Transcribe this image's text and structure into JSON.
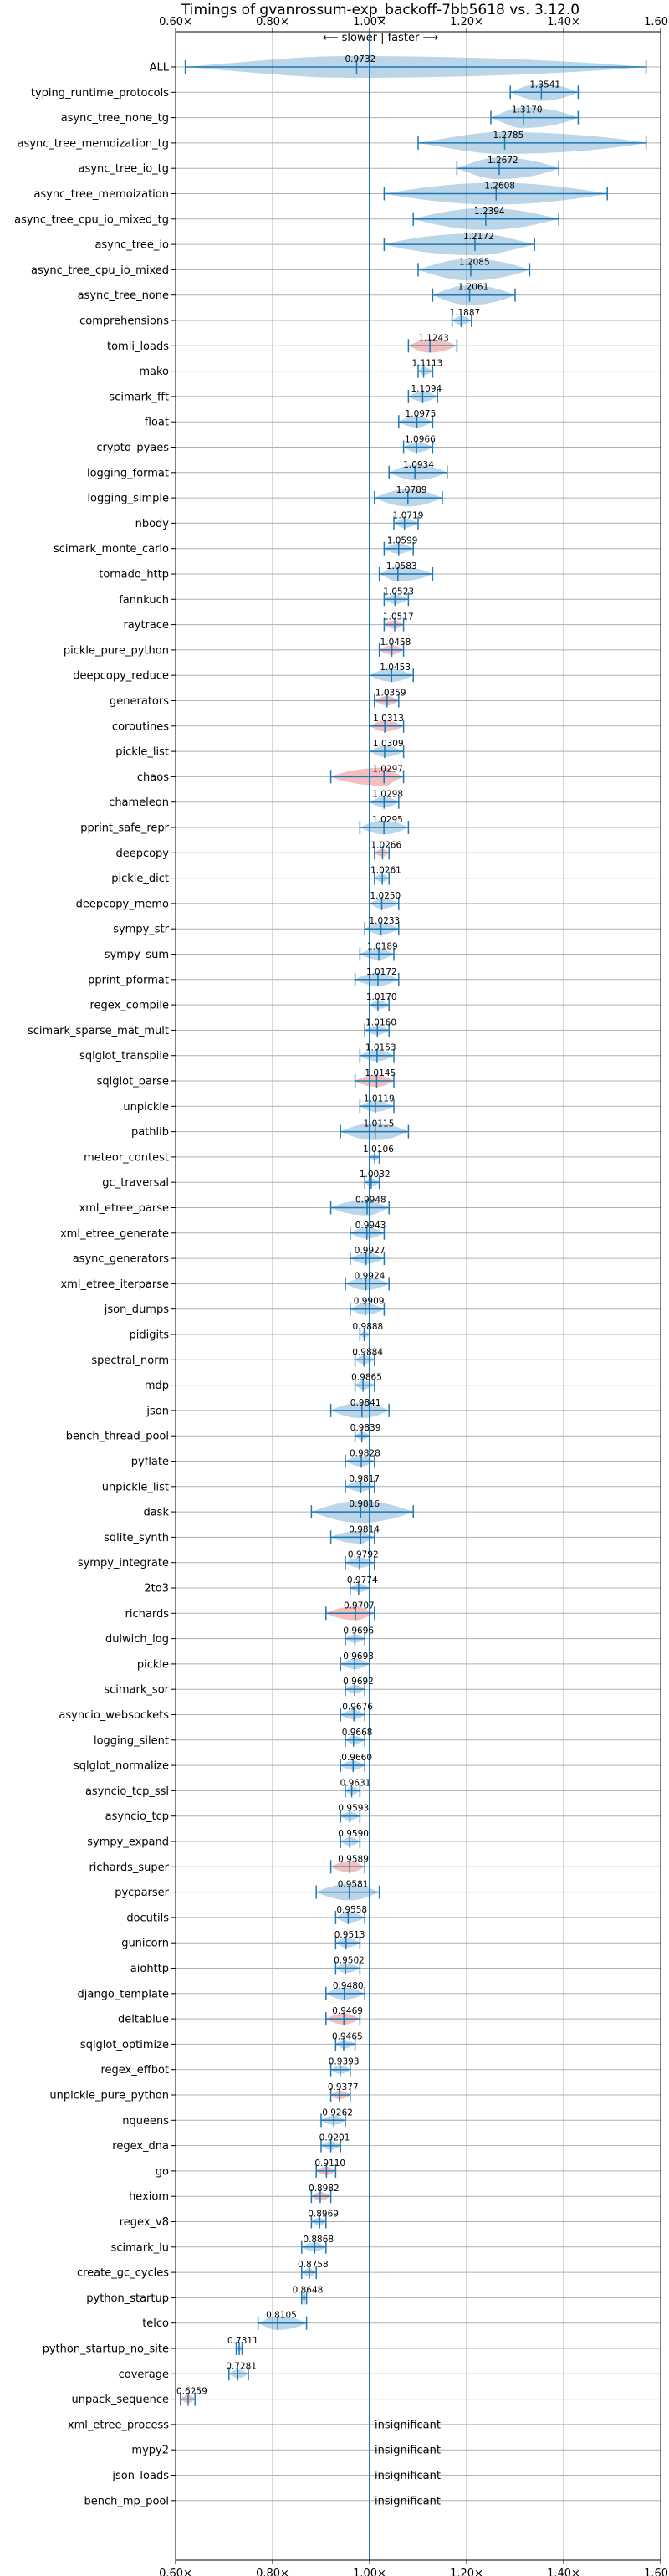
{
  "chart_data": {
    "type": "violin",
    "title": "Timings of gvanrossum-exp_backoff-7bb5618 vs. 3.12.0",
    "subtitle": "⟵ slower | faster ⟶",
    "xlim": [
      0.6,
      1.6
    ],
    "x_ticks": [
      "0.60×",
      "0.80×",
      "1.00×",
      "1.20×",
      "1.40×",
      "1.60×"
    ],
    "x_tick_values": [
      0.6,
      0.8,
      1.0,
      1.2,
      1.4,
      1.6
    ],
    "reference_line": 1.0,
    "grid": true,
    "colors": {
      "faster": "#1f77b4",
      "slower": "#d62728",
      "line": "#1f77b4"
    },
    "benchmarks": [
      {
        "name": "ALL",
        "value": 0.9732,
        "label": "0.9732",
        "lo": 0.62,
        "hi": 1.57
      },
      {
        "name": "typing_runtime_protocols",
        "value": 1.3541,
        "label": "1.3541",
        "lo": 1.29,
        "hi": 1.43
      },
      {
        "name": "async_tree_none_tg",
        "value": 1.317,
        "label": "1.3170",
        "lo": 1.25,
        "hi": 1.43
      },
      {
        "name": "async_tree_memoization_tg",
        "value": 1.2785,
        "label": "1.2785",
        "lo": 1.1,
        "hi": 1.57
      },
      {
        "name": "async_tree_io_tg",
        "value": 1.2672,
        "label": "1.2672",
        "lo": 1.18,
        "hi": 1.39
      },
      {
        "name": "async_tree_memoization",
        "value": 1.2608,
        "label": "1.2608",
        "lo": 1.03,
        "hi": 1.49
      },
      {
        "name": "async_tree_cpu_io_mixed_tg",
        "value": 1.2394,
        "label": "1.2394",
        "lo": 1.09,
        "hi": 1.39
      },
      {
        "name": "async_tree_io",
        "value": 1.2172,
        "label": "1.2172",
        "lo": 1.03,
        "hi": 1.34
      },
      {
        "name": "async_tree_cpu_io_mixed",
        "value": 1.2085,
        "label": "1.2085",
        "lo": 1.1,
        "hi": 1.33
      },
      {
        "name": "async_tree_none",
        "value": 1.2061,
        "label": "1.2061",
        "lo": 1.13,
        "hi": 1.3
      },
      {
        "name": "comprehensions",
        "value": 1.1887,
        "label": "1.1887",
        "lo": 1.17,
        "hi": 1.21
      },
      {
        "name": "tomli_loads",
        "value": 1.1243,
        "label": "1.1243",
        "lo": 1.08,
        "hi": 1.18
      },
      {
        "name": "mako",
        "value": 1.1113,
        "label": "1.1113",
        "lo": 1.1,
        "hi": 1.13
      },
      {
        "name": "scimark_fft",
        "value": 1.1094,
        "label": "1.1094",
        "lo": 1.08,
        "hi": 1.14
      },
      {
        "name": "float",
        "value": 1.0975,
        "label": "1.0975",
        "lo": 1.06,
        "hi": 1.13
      },
      {
        "name": "crypto_pyaes",
        "value": 1.0966,
        "label": "1.0966",
        "lo": 1.07,
        "hi": 1.13
      },
      {
        "name": "logging_format",
        "value": 1.0934,
        "label": "1.0934",
        "lo": 1.04,
        "hi": 1.16
      },
      {
        "name": "logging_simple",
        "value": 1.0789,
        "label": "1.0789",
        "lo": 1.01,
        "hi": 1.15
      },
      {
        "name": "nbody",
        "value": 1.0719,
        "label": "1.0719",
        "lo": 1.05,
        "hi": 1.1
      },
      {
        "name": "scimark_monte_carlo",
        "value": 1.0599,
        "label": "1.0599",
        "lo": 1.03,
        "hi": 1.09
      },
      {
        "name": "tornado_http",
        "value": 1.0583,
        "label": "1.0583",
        "lo": 1.02,
        "hi": 1.13
      },
      {
        "name": "fannkuch",
        "value": 1.0523,
        "label": "1.0523",
        "lo": 1.03,
        "hi": 1.08
      },
      {
        "name": "raytrace",
        "value": 1.0517,
        "label": "1.0517",
        "lo": 1.03,
        "hi": 1.07
      },
      {
        "name": "pickle_pure_python",
        "value": 1.0458,
        "label": "1.0458",
        "lo": 1.02,
        "hi": 1.07
      },
      {
        "name": "deepcopy_reduce",
        "value": 1.0453,
        "label": "1.0453",
        "lo": 1.0,
        "hi": 1.09
      },
      {
        "name": "generators",
        "value": 1.0359,
        "label": "1.0359",
        "lo": 1.01,
        "hi": 1.06
      },
      {
        "name": "coroutines",
        "value": 1.0313,
        "label": "1.0313",
        "lo": 1.0,
        "hi": 1.07
      },
      {
        "name": "pickle_list",
        "value": 1.0309,
        "label": "1.0309",
        "lo": 1.0,
        "hi": 1.07
      },
      {
        "name": "chaos",
        "value": 1.0297,
        "label": "1.0297",
        "lo": 0.92,
        "hi": 1.07
      },
      {
        "name": "chameleon",
        "value": 1.0298,
        "label": "1.0298",
        "lo": 1.0,
        "hi": 1.06
      },
      {
        "name": "pprint_safe_repr",
        "value": 1.0295,
        "label": "1.0295",
        "lo": 0.98,
        "hi": 1.08
      },
      {
        "name": "deepcopy",
        "value": 1.0266,
        "label": "1.0266",
        "lo": 1.01,
        "hi": 1.04
      },
      {
        "name": "pickle_dict",
        "value": 1.0261,
        "label": "1.0261",
        "lo": 1.01,
        "hi": 1.04
      },
      {
        "name": "deepcopy_memo",
        "value": 1.025,
        "label": "1.0250",
        "lo": 1.0,
        "hi": 1.06
      },
      {
        "name": "sympy_str",
        "value": 1.0233,
        "label": "1.0233",
        "lo": 0.99,
        "hi": 1.06
      },
      {
        "name": "sympy_sum",
        "value": 1.0189,
        "label": "1.0189",
        "lo": 0.98,
        "hi": 1.05
      },
      {
        "name": "pprint_pformat",
        "value": 1.0172,
        "label": "1.0172",
        "lo": 0.97,
        "hi": 1.06
      },
      {
        "name": "regex_compile",
        "value": 1.017,
        "label": "1.0170",
        "lo": 1.0,
        "hi": 1.04
      },
      {
        "name": "scimark_sparse_mat_mult",
        "value": 1.016,
        "label": "1.0160",
        "lo": 0.99,
        "hi": 1.04
      },
      {
        "name": "sqlglot_transpile",
        "value": 1.0153,
        "label": "1.0153",
        "lo": 0.98,
        "hi": 1.05
      },
      {
        "name": "sqlglot_parse",
        "value": 1.0145,
        "label": "1.0145",
        "lo": 0.97,
        "hi": 1.05
      },
      {
        "name": "unpickle",
        "value": 1.0119,
        "label": "1.0119",
        "lo": 0.98,
        "hi": 1.05
      },
      {
        "name": "pathlib",
        "value": 1.0115,
        "label": "1.0115",
        "lo": 0.94,
        "hi": 1.08
      },
      {
        "name": "meteor_contest",
        "value": 1.0106,
        "label": "1.0106",
        "lo": 1.0,
        "hi": 1.02
      },
      {
        "name": "gc_traversal",
        "value": 1.0032,
        "label": "1.0032",
        "lo": 0.99,
        "hi": 1.02
      },
      {
        "name": "xml_etree_parse",
        "value": 0.9948,
        "label": "0.9948",
        "lo": 0.92,
        "hi": 1.04
      },
      {
        "name": "xml_etree_generate",
        "value": 0.9943,
        "label": "0.9943",
        "lo": 0.96,
        "hi": 1.03
      },
      {
        "name": "async_generators",
        "value": 0.9927,
        "label": "0.9927",
        "lo": 0.96,
        "hi": 1.03
      },
      {
        "name": "xml_etree_iterparse",
        "value": 0.9924,
        "label": "0.9924",
        "lo": 0.95,
        "hi": 1.04
      },
      {
        "name": "json_dumps",
        "value": 0.9909,
        "label": "0.9909",
        "lo": 0.96,
        "hi": 1.03
      },
      {
        "name": "pidigits",
        "value": 0.9888,
        "label": "0.9888",
        "lo": 0.98,
        "hi": 1.0
      },
      {
        "name": "spectral_norm",
        "value": 0.9884,
        "label": "0.9884",
        "lo": 0.97,
        "hi": 1.01
      },
      {
        "name": "mdp",
        "value": 0.9865,
        "label": "0.9865",
        "lo": 0.97,
        "hi": 1.01
      },
      {
        "name": "json",
        "value": 0.9841,
        "label": "0.9841",
        "lo": 0.92,
        "hi": 1.04
      },
      {
        "name": "bench_thread_pool",
        "value": 0.9839,
        "label": "0.9839",
        "lo": 0.97,
        "hi": 1.0
      },
      {
        "name": "pyflate",
        "value": 0.9828,
        "label": "0.9828",
        "lo": 0.95,
        "hi": 1.01
      },
      {
        "name": "unpickle_list",
        "value": 0.9817,
        "label": "0.9817",
        "lo": 0.95,
        "hi": 1.01
      },
      {
        "name": "dask",
        "value": 0.9816,
        "label": "0.9816",
        "lo": 0.88,
        "hi": 1.09
      },
      {
        "name": "sqlite_synth",
        "value": 0.9814,
        "label": "0.9814",
        "lo": 0.92,
        "hi": 1.01
      },
      {
        "name": "sympy_integrate",
        "value": 0.9792,
        "label": "0.9792",
        "lo": 0.95,
        "hi": 1.01
      },
      {
        "name": "2to3",
        "value": 0.9774,
        "label": "0.9774",
        "lo": 0.96,
        "hi": 1.0
      },
      {
        "name": "richards",
        "value": 0.9707,
        "label": "0.9707",
        "lo": 0.91,
        "hi": 1.01
      },
      {
        "name": "dulwich_log",
        "value": 0.9696,
        "label": "0.9696",
        "lo": 0.95,
        "hi": 0.99
      },
      {
        "name": "pickle",
        "value": 0.9693,
        "label": "0.9693",
        "lo": 0.94,
        "hi": 1.0
      },
      {
        "name": "scimark_sor",
        "value": 0.9692,
        "label": "0.9692",
        "lo": 0.95,
        "hi": 0.99
      },
      {
        "name": "asyncio_websockets",
        "value": 0.9676,
        "label": "0.9676",
        "lo": 0.94,
        "hi": 0.99
      },
      {
        "name": "logging_silent",
        "value": 0.9668,
        "label": "0.9668",
        "lo": 0.95,
        "hi": 0.99
      },
      {
        "name": "sqlglot_normalize",
        "value": 0.966,
        "label": "0.9660",
        "lo": 0.94,
        "hi": 0.99
      },
      {
        "name": "asyncio_tcp_ssl",
        "value": 0.9631,
        "label": "0.9631",
        "lo": 0.95,
        "hi": 0.98
      },
      {
        "name": "asyncio_tcp",
        "value": 0.9593,
        "label": "0.9593",
        "lo": 0.94,
        "hi": 0.98
      },
      {
        "name": "sympy_expand",
        "value": 0.959,
        "label": "0.9590",
        "lo": 0.94,
        "hi": 0.98
      },
      {
        "name": "richards_super",
        "value": 0.9589,
        "label": "0.9589",
        "lo": 0.92,
        "hi": 0.99
      },
      {
        "name": "pycparser",
        "value": 0.9581,
        "label": "0.9581",
        "lo": 0.89,
        "hi": 1.02
      },
      {
        "name": "docutils",
        "value": 0.9558,
        "label": "0.9558",
        "lo": 0.93,
        "hi": 0.99
      },
      {
        "name": "gunicorn",
        "value": 0.9513,
        "label": "0.9513",
        "lo": 0.93,
        "hi": 0.98
      },
      {
        "name": "aiohttp",
        "value": 0.9502,
        "label": "0.9502",
        "lo": 0.93,
        "hi": 0.98
      },
      {
        "name": "django_template",
        "value": 0.948,
        "label": "0.9480",
        "lo": 0.91,
        "hi": 0.99
      },
      {
        "name": "deltablue",
        "value": 0.9469,
        "label": "0.9469",
        "lo": 0.91,
        "hi": 0.98
      },
      {
        "name": "sqlglot_optimize",
        "value": 0.9465,
        "label": "0.9465",
        "lo": 0.93,
        "hi": 0.97
      },
      {
        "name": "regex_effbot",
        "value": 0.9393,
        "label": "0.9393",
        "lo": 0.92,
        "hi": 0.96
      },
      {
        "name": "unpickle_pure_python",
        "value": 0.9377,
        "label": "0.9377",
        "lo": 0.92,
        "hi": 0.96
      },
      {
        "name": "nqueens",
        "value": 0.9262,
        "label": "0.9262",
        "lo": 0.9,
        "hi": 0.95
      },
      {
        "name": "regex_dna",
        "value": 0.9201,
        "label": "0.9201",
        "lo": 0.9,
        "hi": 0.94
      },
      {
        "name": "go",
        "value": 0.911,
        "label": "0.9110",
        "lo": 0.89,
        "hi": 0.93
      },
      {
        "name": "hexiom",
        "value": 0.8982,
        "label": "0.8982",
        "lo": 0.88,
        "hi": 0.92
      },
      {
        "name": "regex_v8",
        "value": 0.8969,
        "label": "0.8969",
        "lo": 0.88,
        "hi": 0.91
      },
      {
        "name": "scimark_lu",
        "value": 0.8868,
        "label": "0.8868",
        "lo": 0.86,
        "hi": 0.91
      },
      {
        "name": "create_gc_cycles",
        "value": 0.8758,
        "label": "0.8758",
        "lo": 0.86,
        "hi": 0.89
      },
      {
        "name": "python_startup",
        "value": 0.8648,
        "label": "0.8648",
        "lo": 0.86,
        "hi": 0.87
      },
      {
        "name": "telco",
        "value": 0.8105,
        "label": "0.8105",
        "lo": 0.77,
        "hi": 0.87
      },
      {
        "name": "python_startup_no_site",
        "value": 0.7311,
        "label": "0.7311",
        "lo": 0.725,
        "hi": 0.737
      },
      {
        "name": "coverage",
        "value": 0.7281,
        "label": "0.7281",
        "lo": 0.71,
        "hi": 0.75
      },
      {
        "name": "unpack_sequence",
        "value": 0.6259,
        "label": "0.6259",
        "lo": 0.61,
        "hi": 0.64
      },
      {
        "name": "xml_etree_process",
        "insignificant": true,
        "label": "insignificant"
      },
      {
        "name": "mypy2",
        "insignificant": true,
        "label": "insignificant"
      },
      {
        "name": "json_loads",
        "insignificant": true,
        "label": "insignificant"
      },
      {
        "name": "bench_mp_pool",
        "insignificant": true,
        "label": "insignificant"
      }
    ],
    "red_highlight": [
      "tomli_loads",
      "raytrace",
      "pickle_pure_python",
      "generators",
      "coroutines",
      "chaos",
      "deepcopy",
      "sqlglot_parse",
      "richards",
      "richards_super",
      "deltablue",
      "unpickle_pure_python",
      "go",
      "hexiom",
      "unpack_sequence"
    ]
  }
}
